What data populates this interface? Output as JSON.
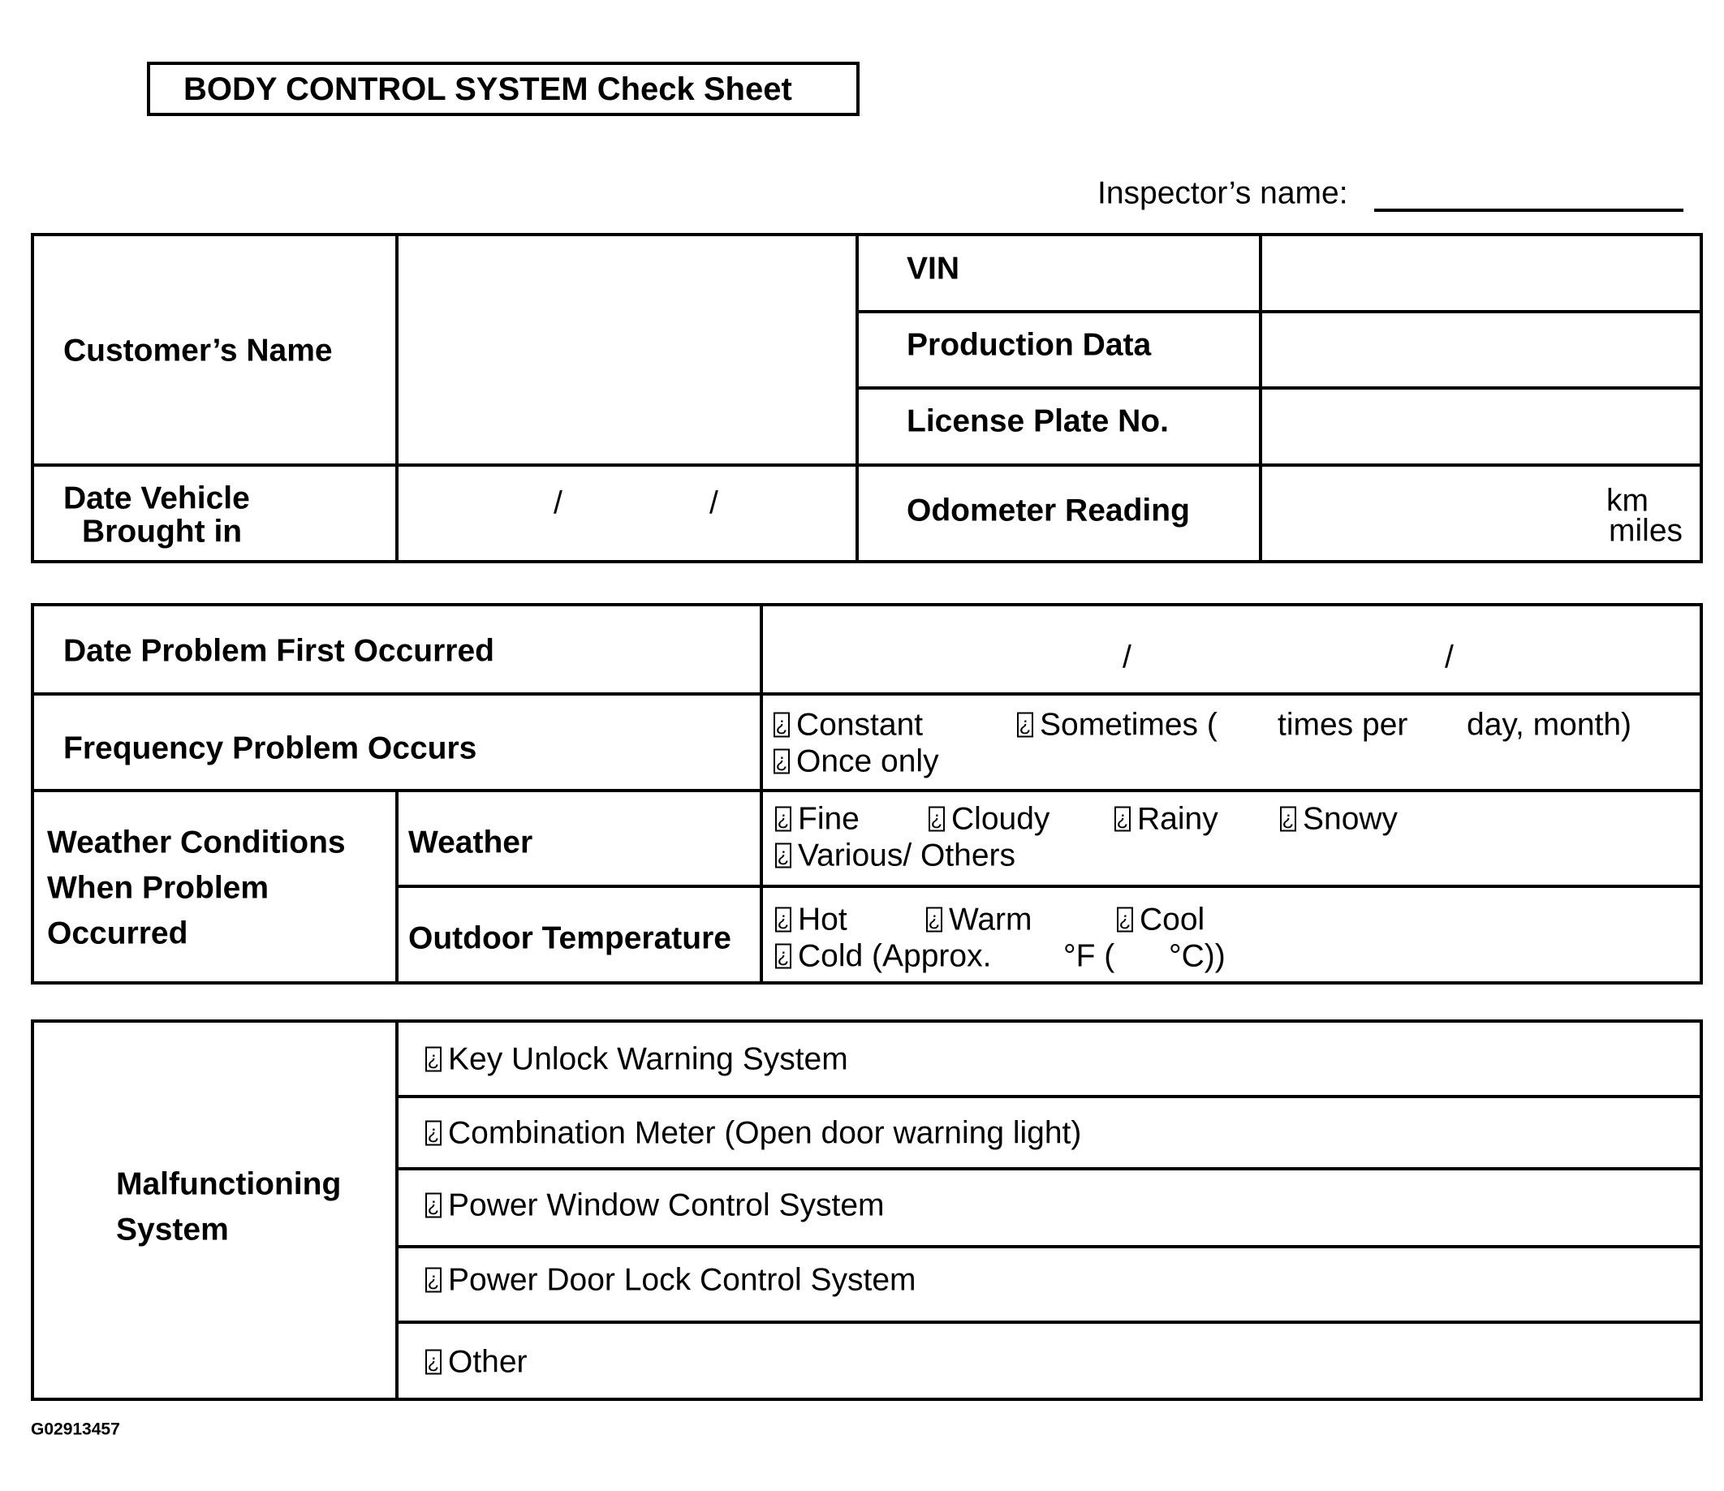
{
  "title": "BODY CONTROL SYSTEM Check Sheet",
  "inspector_label": "Inspector’s name:",
  "checkbox_glyph": "¿",
  "vehicle_info": {
    "customer_name": "Customer’s Name",
    "vin": "VIN",
    "production_data": "Production Data",
    "license_plate": "License Plate No.",
    "date_brought_in_line1": "Date Vehicle",
    "date_brought_in_line2": "Brought in",
    "date_separator": "/",
    "odometer": "Odometer Reading",
    "unit_km": "km",
    "unit_miles": "miles"
  },
  "problem": {
    "date_first": "Date Problem First Occurred",
    "date_separator": "/",
    "frequency": "Frequency Problem Occurs",
    "freq_constant": "Constant",
    "freq_sometimes": "Sometimes (",
    "freq_times_per": "times per",
    "freq_day_month": "day, month)",
    "freq_once": "Once only",
    "weather_conditions_line1": "Weather Conditions",
    "weather_conditions_line2": "When Problem",
    "weather_conditions_line3": "Occurred",
    "weather": "Weather",
    "weather_options": [
      "Fine",
      "Cloudy",
      "Rainy",
      "Snowy",
      "Various/ Others"
    ],
    "outdoor_temp": "Outdoor Temperature",
    "temp_options": [
      "Hot",
      "Warm",
      "Cool",
      "Cold (Approx."
    ],
    "temp_f": "°F (",
    "temp_c": "°C))"
  },
  "malfunction": {
    "label_line1": "Malfunctioning",
    "label_line2": "System",
    "items": [
      "Key Unlock Warning System",
      "Combination Meter (Open door warning light)",
      "Power Window Control System",
      "Power Door Lock Control System",
      "Other"
    ]
  },
  "figure_id": "G02913457"
}
